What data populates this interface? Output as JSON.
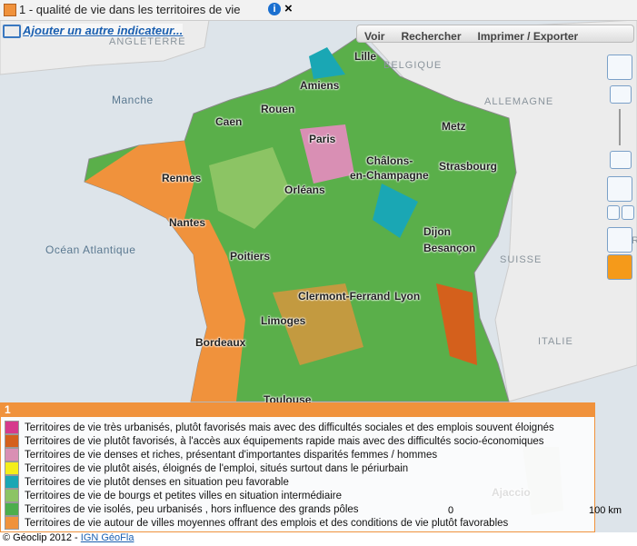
{
  "header": {
    "title": "1 - qualité de vie dans les territoires de vie",
    "close": "×"
  },
  "toolbar": {
    "add_link": "Ajouter un autre indicateur...",
    "menus": [
      "Voir",
      "Rechercher",
      "Imprimer / Exporter"
    ]
  },
  "map": {
    "countries": [
      "ANGLETERRE",
      "BELGIQUE",
      "ALLEMAGNE",
      "SUISSE",
      "ITALIE",
      "AUTR"
    ],
    "seas": [
      "Manche",
      "Océan Atlantique"
    ],
    "cities": [
      "Lille",
      "Amiens",
      "Rouen",
      "Caen",
      "Paris",
      "Metz",
      "Châlons-",
      "en-Champagne",
      "Strasbourg",
      "Rennes",
      "Orléans",
      "Nantes",
      "Dijon",
      "Besançon",
      "Poitiers",
      "Clermont-Ferrand",
      "Lyon",
      "Limoges",
      "Bordeaux",
      "Toulouse",
      "Ajaccio"
    ],
    "scale": {
      "start": "0",
      "end": "100 km"
    }
  },
  "legend": {
    "title": "1",
    "items": [
      {
        "label": "Territoires de vie très urbanisés, plutôt favorisés mais avec des difficultés sociales et des emplois souvent éloignés",
        "color": "#d63a8c"
      },
      {
        "label": "Territoires de vie plutôt favorisés, à l'accès aux équipements rapide mais avec des difficultés socio-économiques",
        "color": "#d4601c"
      },
      {
        "label": "Territoires de vie denses et riches, présentant d'importantes disparités femmes / hommes",
        "color": "#d98fb4"
      },
      {
        "label": "Territoires de vie plutôt aisés, éloignés de l'emploi, situés surtout dans le périurbain",
        "color": "#f4ee1a"
      },
      {
        "label": "Territoires de vie plutôt denses en situation peu favorable",
        "color": "#1aa7b4"
      },
      {
        "label": "Territoires de vie de bourgs et petites villes en situation intermédiaire",
        "color": "#8cc464"
      },
      {
        "label": "Territoires de vie isolés, peu urbanisés , hors influence des grands pôles",
        "color": "#4cae4c"
      },
      {
        "label": "Territoires de vie autour de villes moyennes offrant des emplois et des conditions de vie plutôt favorables",
        "color": "#f0923c"
      }
    ]
  },
  "footer": {
    "copyright": "© Géoclip 2012 - ",
    "link": "IGN GéoFla"
  }
}
